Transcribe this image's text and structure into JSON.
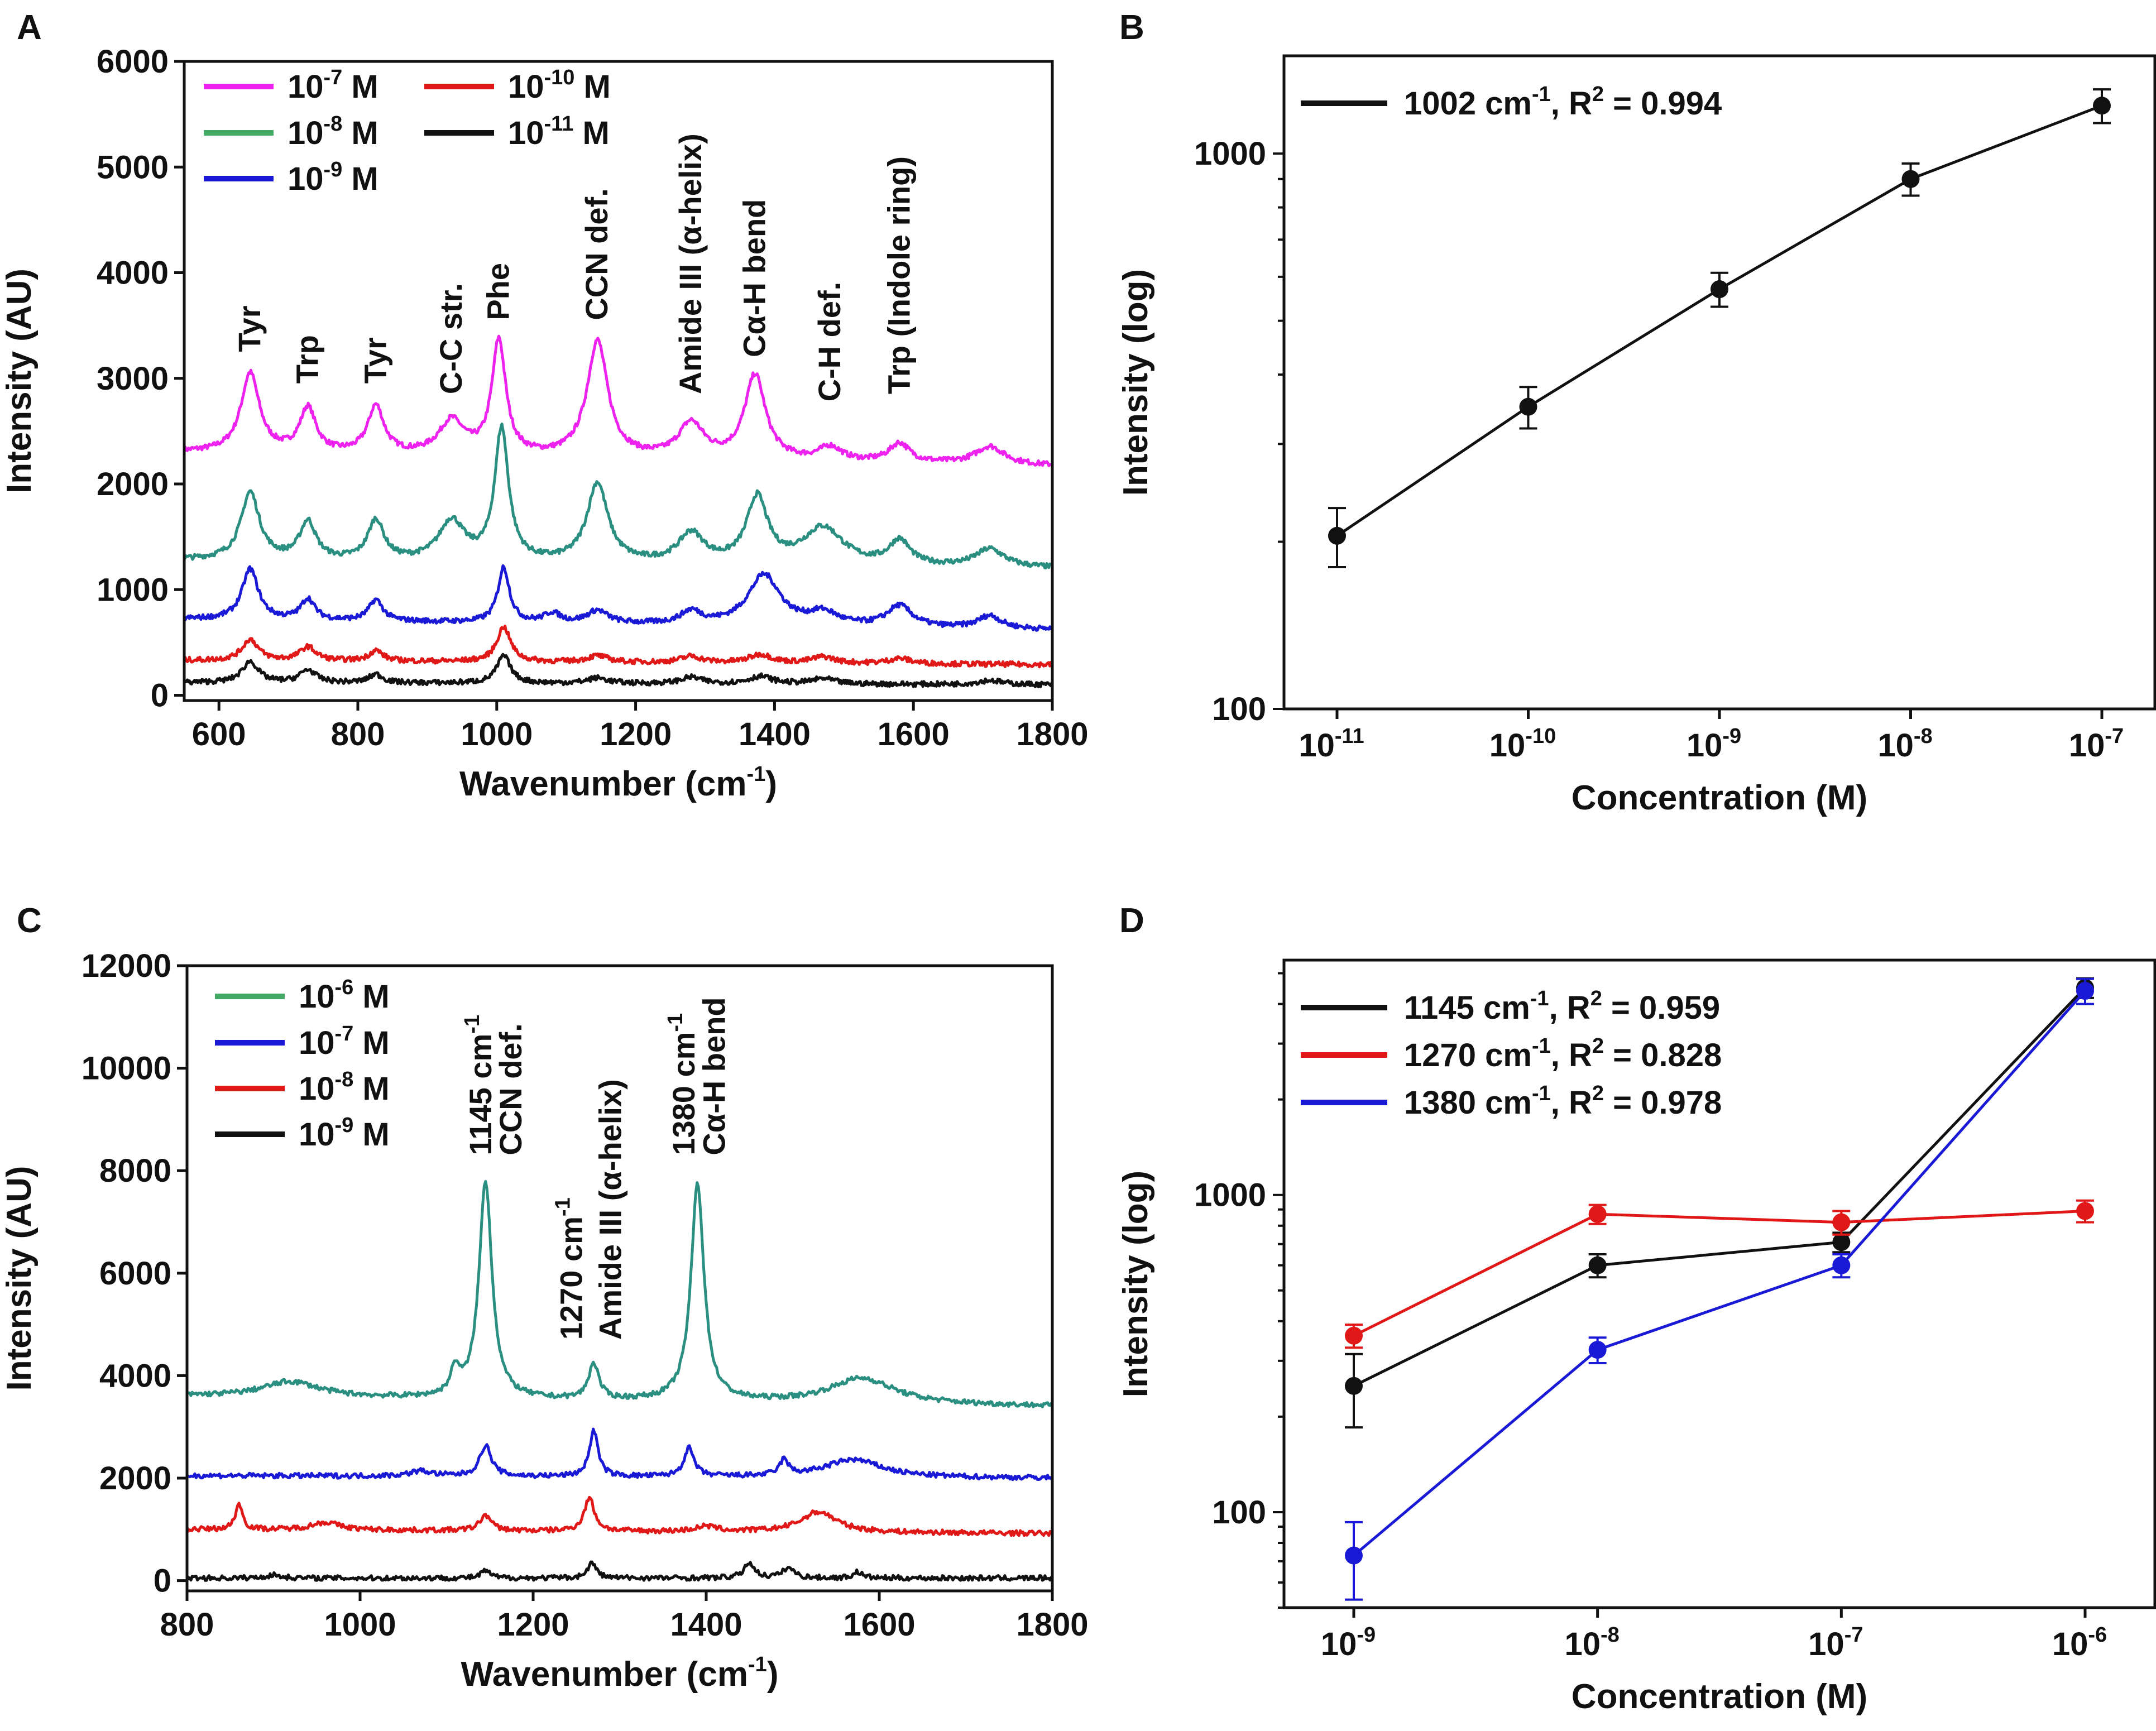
{
  "figure": {
    "panel_labels": [
      "A",
      "B",
      "C",
      "D"
    ]
  },
  "chart_data": [
    {
      "id": "A",
      "type": "line",
      "xlabel": "Wavenumber (cm-1)",
      "xlabel_base": "Wavenumber (cm",
      "xlabel_sup": "-1",
      "xlabel_end": ")",
      "ylabel": "Intensity (AU)",
      "xlim": [
        550,
        1800
      ],
      "ylim": [
        -50,
        6000
      ],
      "xticks": [
        600,
        800,
        1000,
        1200,
        1400,
        1600,
        1800
      ],
      "yticks": [
        0,
        1000,
        2000,
        3000,
        4000,
        5000,
        6000
      ],
      "legend": [
        {
          "label": "10-7 M",
          "base": "10",
          "exp": "-7",
          "unit": " M",
          "color": "#ee22ee"
        },
        {
          "label": "10-8 M",
          "base": "10",
          "exp": "-8",
          "unit": " M",
          "color": "#44aa66"
        },
        {
          "label": "10-9 M",
          "base": "10",
          "exp": "-9",
          "unit": " M",
          "color": "#1a1ad6"
        },
        {
          "label": "10-10 M",
          "base": "10",
          "exp": "-10",
          "unit": " M",
          "color": "#e01818"
        },
        {
          "label": "10-11 M",
          "base": "10",
          "exp": "-11",
          "unit": " M",
          "color": "#111111"
        }
      ],
      "series": [
        {
          "name": "10-7 M",
          "color": "#ee22ee",
          "baseline": 2300,
          "tail": 2170,
          "peaks": [
            [
              645,
              750,
              16
            ],
            [
              728,
              420,
              14
            ],
            [
              826,
              450,
              14
            ],
            [
              935,
              320,
              22
            ],
            [
              1003,
              1080,
              12
            ],
            [
              1145,
              1100,
              18
            ],
            [
              1280,
              330,
              22
            ],
            [
              1372,
              800,
              18
            ],
            [
              1480,
              130,
              20
            ],
            [
              1580,
              180,
              18
            ],
            [
              1710,
              170,
              25
            ]
          ]
        },
        {
          "name": "10-8 M",
          "color": "#2a8f80",
          "baseline": 1280,
          "tail": 1200,
          "peaks": [
            [
              645,
              640,
              16
            ],
            [
              728,
              360,
              14
            ],
            [
              826,
              380,
              14
            ],
            [
              935,
              380,
              22
            ],
            [
              1007,
              1250,
              12
            ],
            [
              1145,
              750,
              18
            ],
            [
              1280,
              280,
              22
            ],
            [
              1375,
              620,
              18
            ],
            [
              1470,
              350,
              35
            ],
            [
              1580,
              230,
              18
            ],
            [
              1710,
              170,
              25
            ]
          ]
        },
        {
          "name": "10-9 M",
          "color": "#1a1ad6",
          "baseline": 720,
          "tail": 620,
          "peaks": [
            [
              645,
              480,
              14
            ],
            [
              728,
              200,
              12
            ],
            [
              826,
              200,
              12
            ],
            [
              1010,
              520,
              10
            ],
            [
              1080,
              90,
              14
            ],
            [
              1145,
              120,
              18
            ],
            [
              1280,
              120,
              18
            ],
            [
              1385,
              480,
              28
            ],
            [
              1470,
              120,
              25
            ],
            [
              1580,
              200,
              22
            ],
            [
              1710,
              120,
              20
            ]
          ]
        },
        {
          "name": "10-10 M",
          "color": "#e01818",
          "baseline": 330,
          "tail": 290,
          "peaks": [
            [
              645,
              200,
              14
            ],
            [
              728,
              130,
              14
            ],
            [
              826,
              100,
              12
            ],
            [
              1010,
              330,
              12
            ],
            [
              1145,
              60,
              18
            ],
            [
              1280,
              60,
              18
            ],
            [
              1380,
              80,
              20
            ],
            [
              1470,
              60,
              20
            ],
            [
              1580,
              50,
              20
            ]
          ]
        },
        {
          "name": "10-11 M",
          "color": "#111111",
          "baseline": 120,
          "tail": 100,
          "peaks": [
            [
              645,
              200,
              14
            ],
            [
              728,
              120,
              14
            ],
            [
              826,
              80,
              12
            ],
            [
              1010,
              260,
              12
            ],
            [
              1145,
              50,
              18
            ],
            [
              1280,
              60,
              18
            ],
            [
              1380,
              70,
              20
            ],
            [
              1470,
              50,
              20
            ],
            [
              1710,
              40,
              20
            ]
          ]
        }
      ],
      "annotations": [
        {
          "text": "Tyr",
          "x": 645,
          "y": 3250
        },
        {
          "text": "Trp",
          "x": 728,
          "y": 2950
        },
        {
          "text": "Tyr",
          "x": 826,
          "y": 2950
        },
        {
          "text": "C-C str.",
          "x": 935,
          "y": 2850
        },
        {
          "text": "Phe",
          "x": 1003,
          "y": 3550
        },
        {
          "text": "CCN def.",
          "x": 1145,
          "y": 3550
        },
        {
          "text": "Amide III (α-helix)",
          "x": 1280,
          "y": 2850
        },
        {
          "text": "Cα-H bend",
          "x": 1372,
          "y": 3200
        },
        {
          "text": "C-H def.",
          "x": 1480,
          "y": 2780
        },
        {
          "text": "Trp (Indole ring)",
          "x": 1580,
          "y": 2850
        }
      ]
    },
    {
      "id": "B",
      "type": "line",
      "xlabel": "Concentration (M)",
      "ylabel": "Intensity (log)",
      "yscale": "log",
      "ylim": [
        100,
        1500
      ],
      "xticks": [
        {
          "base": "10",
          "exp": "-11"
        },
        {
          "base": "10",
          "exp": "-10"
        },
        {
          "base": "10",
          "exp": "-9"
        },
        {
          "base": "10",
          "exp": "-8"
        },
        {
          "base": "10",
          "exp": "-7"
        }
      ],
      "yticks": [
        100,
        1000
      ],
      "legend": [
        {
          "label": "1002 cm-1, R2 = 0.994",
          "wn": "1002",
          "unit": " cm",
          "exp": "-1",
          "r2": ", R",
          "r2sup": "2",
          "r2val": " = 0.994",
          "color": "#111111"
        }
      ],
      "series": [
        {
          "name": "1002 cm-1",
          "color": "#111111",
          "x": [
            -11,
            -10,
            -9,
            -8,
            -7
          ],
          "values": [
            205,
            350,
            570,
            900,
            1220
          ],
          "err": [
            25,
            30,
            40,
            60,
            85
          ]
        }
      ]
    },
    {
      "id": "C",
      "type": "line",
      "xlabel": "Wavenumber (cm-1)",
      "xlabel_base": "Wavenumber (cm",
      "xlabel_sup": "-1",
      "xlabel_end": ")",
      "ylabel": "Intensity (AU)",
      "xlim": [
        800,
        1800
      ],
      "ylim": [
        -200,
        12000
      ],
      "xticks": [
        800,
        1000,
        1200,
        1400,
        1600,
        1800
      ],
      "yticks": [
        0,
        2000,
        4000,
        6000,
        8000,
        10000,
        12000
      ],
      "legend": [
        {
          "label": "10-6 M",
          "base": "10",
          "exp": "-6",
          "unit": " M",
          "color": "#44aa66"
        },
        {
          "label": "10-7 M",
          "base": "10",
          "exp": "-7",
          "unit": " M",
          "color": "#1a1ad6"
        },
        {
          "label": "10-8 M",
          "base": "10",
          "exp": "-8",
          "unit": " M",
          "color": "#e01818"
        },
        {
          "label": "10-9 M",
          "base": "10",
          "exp": "-9",
          "unit": " M",
          "color": "#111111"
        }
      ],
      "series": [
        {
          "name": "10-6 M",
          "color": "#2a8f80",
          "baseline": 3600,
          "tail": 3400,
          "peaks": [
            [
              920,
              300,
              40
            ],
            [
              1110,
              500,
              6
            ],
            [
              1145,
              4250,
              9
            ],
            [
              1270,
              700,
              7
            ],
            [
              1390,
              4250,
              9
            ],
            [
              1580,
              500,
              45
            ]
          ]
        },
        {
          "name": "10-7 M",
          "color": "#1a1ad6",
          "baseline": 2050,
          "tail": 2000,
          "peaks": [
            [
              1145,
              600,
              8
            ],
            [
              1270,
              900,
              6
            ],
            [
              1380,
              550,
              7
            ],
            [
              1490,
              300,
              6
            ],
            [
              1570,
              350,
              40
            ],
            [
              1070,
              100,
              15
            ]
          ]
        },
        {
          "name": "10-8 M",
          "color": "#e01818",
          "baseline": 1000,
          "tail": 920,
          "peaks": [
            [
              860,
              500,
              5
            ],
            [
              960,
              150,
              20
            ],
            [
              1145,
              300,
              8
            ],
            [
              1265,
              650,
              7
            ],
            [
              1400,
              100,
              15
            ],
            [
              1530,
              400,
              25
            ]
          ]
        },
        {
          "name": "10-9 M",
          "color": "#111111",
          "baseline": 50,
          "tail": 50,
          "peaks": [
            [
              1145,
              150,
              6
            ],
            [
              1268,
              300,
              6
            ],
            [
              1450,
              300,
              7
            ],
            [
              1495,
              200,
              8
            ],
            [
              1575,
              120,
              6
            ],
            [
              900,
              60,
              10
            ]
          ]
        }
      ],
      "annotations": [
        {
          "text": "1145 cm-1",
          "base": "1145 cm",
          "exp": "-1",
          "x": 1140,
          "y": 8300
        },
        {
          "text": "CCN def.",
          "x": 1175,
          "y": 8300
        },
        {
          "text": "1270 cm-1",
          "base": "1270 cm",
          "exp": "-1",
          "x": 1245,
          "y": 4700
        },
        {
          "text": "Amide III (α-helix)",
          "x": 1290,
          "y": 4700
        },
        {
          "text": "1380 cm-1",
          "base": "1380 cm",
          "exp": "-1",
          "x": 1375,
          "y": 8300
        },
        {
          "text": "Cα-H bend",
          "x": 1410,
          "y": 8300
        }
      ]
    },
    {
      "id": "D",
      "type": "line",
      "xlabel": "Concentration (M)",
      "ylabel": "Intensity (log)",
      "yscale": "log",
      "ylim": [
        50,
        5500
      ],
      "xticks": [
        {
          "base": "10",
          "exp": "-9"
        },
        {
          "base": "10",
          "exp": "-8"
        },
        {
          "base": "10",
          "exp": "-7"
        },
        {
          "base": "10",
          "exp": "-6"
        }
      ],
      "yticks": [
        100,
        1000
      ],
      "legend": [
        {
          "label": "1145 cm-1, R2 = 0.959",
          "wn": "1145",
          "unit": " cm",
          "exp": "-1",
          "r2": ", R",
          "r2sup": "2",
          "r2val": " = 0.959",
          "color": "#111111"
        },
        {
          "label": "1270 cm-1, R2 = 0.828",
          "wn": "1270",
          "unit": " cm",
          "exp": "-1",
          "r2": ", R",
          "r2sup": "2",
          "r2val": " = 0.828",
          "color": "#e01818"
        },
        {
          "label": "1380 cm-1, R2 = 0.978",
          "wn": "1380",
          "unit": " cm",
          "exp": "-1",
          "r2": ", R",
          "r2sup": "2",
          "r2val": " = 0.978",
          "color": "#1a1ad6"
        }
      ],
      "series": [
        {
          "name": "1145 cm-1",
          "color": "#111111",
          "x": [
            -9,
            -8,
            -7,
            -6
          ],
          "values": [
            250,
            600,
            710,
            4500
          ],
          "err": [
            65,
            50,
            50,
            320
          ]
        },
        {
          "name": "1270 cm-1",
          "color": "#e01818",
          "x": [
            -9,
            -8,
            -7,
            -6
          ],
          "values": [
            360,
            870,
            820,
            890
          ],
          "err": [
            30,
            60,
            70,
            70
          ]
        },
        {
          "name": "1380 cm-1",
          "color": "#1a1ad6",
          "x": [
            -9,
            -8,
            -7,
            -6
          ],
          "values": [
            73,
            325,
            600,
            4400
          ],
          "err": [
            20,
            30,
            50,
            400
          ]
        }
      ]
    }
  ]
}
